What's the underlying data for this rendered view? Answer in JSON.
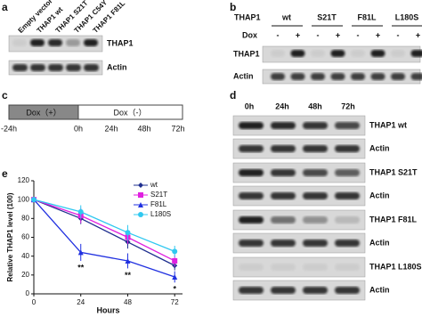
{
  "figure_labels": [
    "a",
    "b",
    "c",
    "d",
    "e"
  ],
  "panel_a": {
    "lanes": [
      "Empty vector",
      "THAP1 wt",
      "THAP1 S21T",
      "THAP1 C54Y",
      "THAP1 F81L"
    ],
    "blots": [
      "THAP1",
      "Actin"
    ]
  },
  "panel_b": {
    "header": "THAP1",
    "groups": [
      "wt",
      "S21T",
      "F81L",
      "L180S"
    ],
    "dox": "Dox",
    "signs": [
      "-",
      "+",
      "-",
      "+",
      "-",
      "+",
      "-",
      "+"
    ],
    "blots": [
      "THAP1",
      "Actin"
    ]
  },
  "panel_c": {
    "phases": [
      "Dox（+）",
      "Dox（-）"
    ],
    "ticks": [
      "-24h",
      "0h",
      "24h",
      "48h",
      "72h"
    ]
  },
  "panel_d": {
    "times": [
      "0h",
      "24h",
      "48h",
      "72h"
    ],
    "blots": [
      "THAP1 wt",
      "Actin",
      "THAP1 S21T",
      "Actin",
      "THAP1 F81L",
      "Actin",
      "THAP1 L180S",
      "Actin"
    ]
  },
  "chart_data": {
    "type": "line",
    "xlabel": "Hours",
    "ylabel": "Relative THAP1 level (100)",
    "x": [
      0,
      24,
      48,
      72
    ],
    "xlim": [
      0,
      76
    ],
    "xticks": [
      0,
      24,
      48,
      72
    ],
    "ylim": [
      0,
      120
    ],
    "yticks": [
      0,
      20,
      40,
      60,
      80,
      100,
      120
    ],
    "series": [
      {
        "name": "wt",
        "color": "#1f2f8f",
        "marker": "diamond",
        "values": [
          100,
          80,
          55,
          30
        ],
        "errors": [
          0,
          6,
          7,
          5
        ]
      },
      {
        "name": "S21T",
        "color": "#e020e0",
        "marker": "square",
        "values": [
          100,
          83,
          60,
          35
        ],
        "errors": [
          0,
          8,
          7,
          6
        ]
      },
      {
        "name": "F81L",
        "color": "#2030e0",
        "marker": "triangle",
        "values": [
          100,
          44,
          35,
          18
        ],
        "errors": [
          0,
          9,
          8,
          6
        ]
      },
      {
        "name": "L180S",
        "color": "#30c8f0",
        "marker": "circle",
        "values": [
          100,
          87,
          65,
          45
        ],
        "errors": [
          0,
          7,
          8,
          6
        ]
      }
    ],
    "annotations": [
      "**",
      "**",
      "*"
    ]
  }
}
